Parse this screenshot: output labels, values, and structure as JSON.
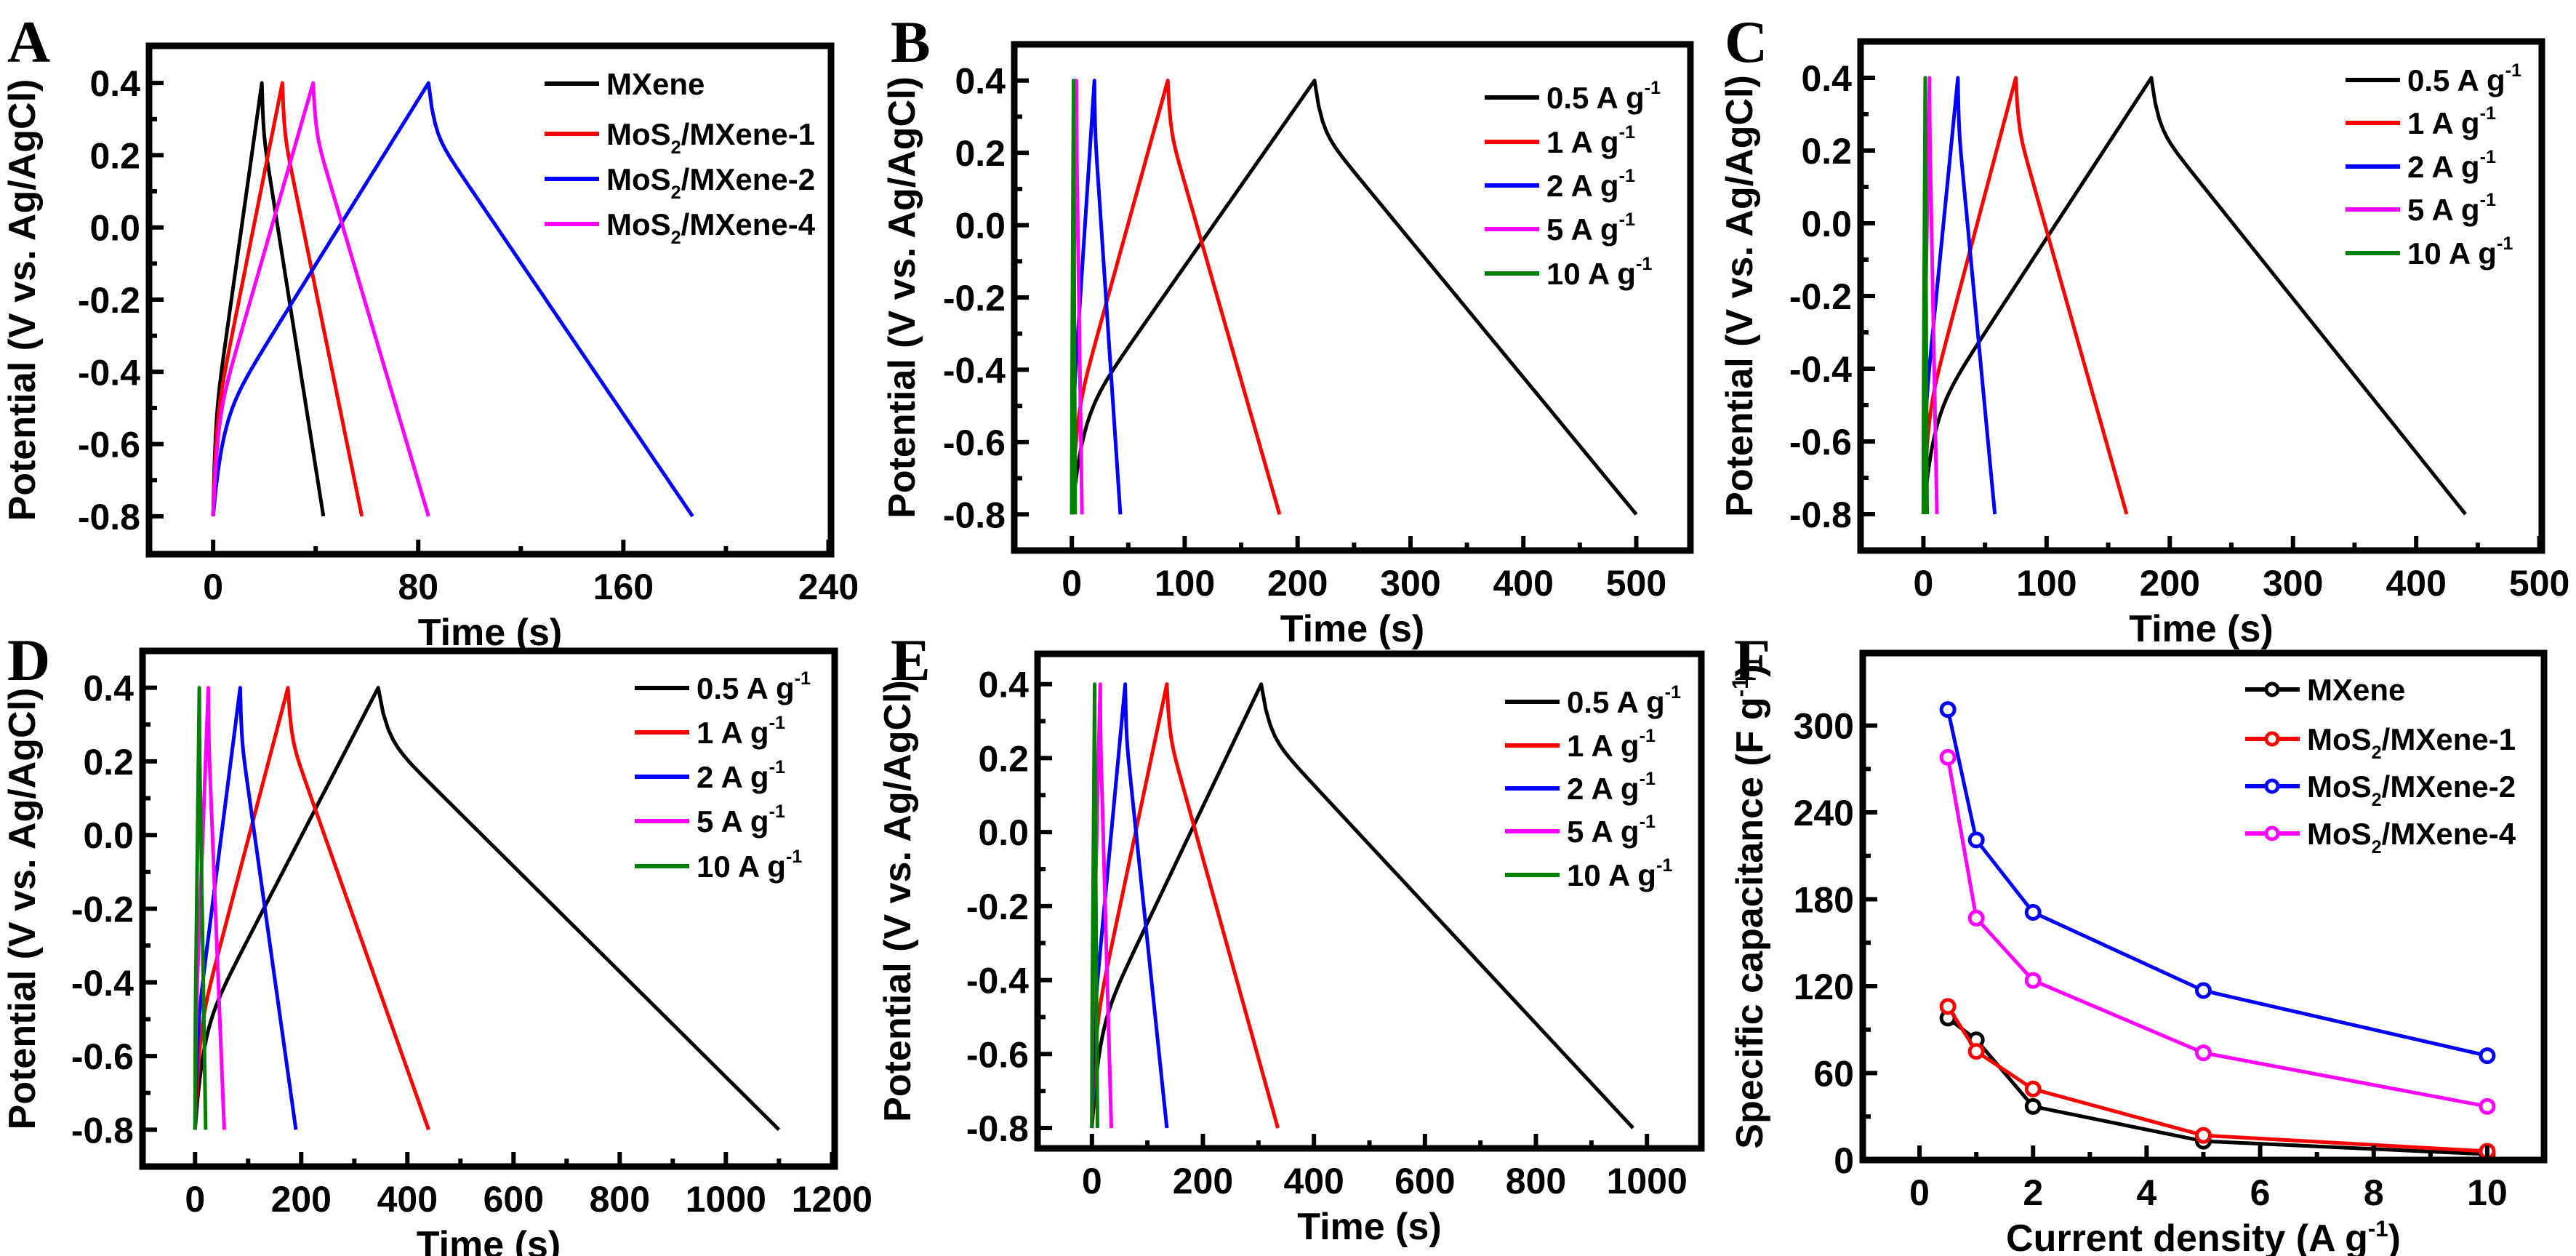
{
  "colors": {
    "black": "#000000",
    "red": "#ff0000",
    "blue": "#0000ff",
    "magenta": "#ff00ff",
    "green": "#008000"
  },
  "chart_data": [
    {
      "panel": "A",
      "type": "line",
      "xlabel": "Time (s)",
      "ylabel": "Potential (V vs. Ag/AgCl)",
      "xlim": [
        -25,
        241
      ],
      "ylim": [
        -0.905,
        0.503
      ],
      "xticks": [
        0,
        80,
        160,
        240
      ],
      "xminor": [
        40,
        120,
        200
      ],
      "yticks": [
        -0.8,
        -0.6,
        -0.4,
        -0.2,
        0.0,
        0.2,
        0.4
      ],
      "voltage_window": [
        -0.8,
        0.4
      ],
      "legend_position": "top-right",
      "series": [
        {
          "name": "MXene",
          "color": "#000000",
          "peak_time": 19,
          "end_time": 43
        },
        {
          "name": "MoS2/MXene-1",
          "color": "#ff0000",
          "peak_time": 27,
          "end_time": 58
        },
        {
          "name": "MoS2/MXene-2",
          "color": "#0000ff",
          "peak_time": 84,
          "end_time": 187
        },
        {
          "name": "MoS2/MXene-4",
          "color": "#ff00ff",
          "peak_time": 39,
          "end_time": 84
        }
      ]
    },
    {
      "panel": "B",
      "type": "line",
      "xlabel": "Time (s)",
      "ylabel": "Potential (V vs. Ag/AgCl)",
      "xlim": [
        -51,
        548
      ],
      "ylim": [
        -0.9,
        0.5
      ],
      "xticks": [
        0,
        100,
        200,
        300,
        400,
        500
      ],
      "xminor": [
        50,
        150,
        250,
        350,
        450
      ],
      "yticks": [
        -0.8,
        -0.6,
        -0.4,
        -0.2,
        0.0,
        0.2,
        0.4
      ],
      "voltage_window": [
        -0.8,
        0.4
      ],
      "legend_position": "top-right",
      "series": [
        {
          "name": "0.5 A g-1",
          "color": "#000000",
          "peak_time": 215,
          "end_time": 500
        },
        {
          "name": "1 A g-1",
          "color": "#ff0000",
          "peak_time": 85,
          "end_time": 184
        },
        {
          "name": "2 A g-1",
          "color": "#0000ff",
          "peak_time": 20,
          "end_time": 43
        },
        {
          "name": "5 A g-1",
          "color": "#ff00ff",
          "peak_time": 4,
          "end_time": 9
        },
        {
          "name": "10 A g-1",
          "color": "#008000",
          "peak_time": 1.5,
          "end_time": 3
        }
      ]
    },
    {
      "panel": "C",
      "type": "line",
      "xlabel": "Time (s)",
      "ylabel": "Potential (V vs. Ag/AgCl)",
      "xlim": [
        -51,
        502
      ],
      "ylim": [
        -0.9,
        0.5
      ],
      "xticks": [
        0,
        100,
        200,
        300,
        400,
        500
      ],
      "xminor": [
        50,
        150,
        250,
        350,
        450
      ],
      "yticks": [
        -0.8,
        -0.6,
        -0.4,
        -0.2,
        0.0,
        0.2,
        0.4
      ],
      "voltage_window": [
        -0.8,
        0.4
      ],
      "legend_position": "top-right",
      "series": [
        {
          "name": "0.5 A g-1",
          "color": "#000000",
          "peak_time": 185,
          "end_time": 440
        },
        {
          "name": "1 A g-1",
          "color": "#ff0000",
          "peak_time": 75,
          "end_time": 165
        },
        {
          "name": "2 A g-1",
          "color": "#0000ff",
          "peak_time": 28,
          "end_time": 58
        },
        {
          "name": "5 A g-1",
          "color": "#ff00ff",
          "peak_time": 5,
          "end_time": 11
        },
        {
          "name": "10 A g-1",
          "color": "#008000",
          "peak_time": 1.5,
          "end_time": 3
        }
      ]
    },
    {
      "panel": "D",
      "type": "line",
      "xlabel": "Time (s)",
      "ylabel": "Potential (V vs. Ag/AgCl)",
      "xlim": [
        -99,
        1205
      ],
      "ylim": [
        -0.9,
        0.5
      ],
      "xticks": [
        0,
        200,
        400,
        600,
        800,
        1000,
        1200
      ],
      "xminor": [
        100,
        300,
        500,
        700,
        900,
        1100
      ],
      "yticks": [
        -0.8,
        -0.6,
        -0.4,
        -0.2,
        0.0,
        0.2,
        0.4
      ],
      "voltage_window": [
        -0.8,
        0.4
      ],
      "legend_position": "top-right",
      "series": [
        {
          "name": "0.5 A g-1",
          "color": "#000000",
          "peak_time": 345,
          "end_time": 1100
        },
        {
          "name": "1 A g-1",
          "color": "#ff0000",
          "peak_time": 175,
          "end_time": 440
        },
        {
          "name": "2 A g-1",
          "color": "#0000ff",
          "peak_time": 85,
          "end_time": 190
        },
        {
          "name": "5 A g-1",
          "color": "#ff00ff",
          "peak_time": 25,
          "end_time": 55
        },
        {
          "name": "10 A g-1",
          "color": "#008000",
          "peak_time": 8,
          "end_time": 20
        }
      ]
    },
    {
      "panel": "E",
      "type": "line",
      "xlabel": "Time (s)",
      "ylabel": "Potential (V vs. Ag/AgCl)",
      "xlim": [
        -98,
        1098
      ],
      "ylim": [
        -0.855,
        0.482
      ],
      "xticks": [
        0,
        200,
        400,
        600,
        800,
        1000
      ],
      "xminor": [
        100,
        300,
        500,
        700,
        900
      ],
      "yticks": [
        -0.8,
        -0.6,
        -0.4,
        -0.2,
        0.0,
        0.2,
        0.4
      ],
      "voltage_window": [
        -0.8,
        0.4
      ],
      "legend_position": "top-right",
      "series": [
        {
          "name": "0.5 A g-1",
          "color": "#000000",
          "peak_time": 305,
          "end_time": 975
        },
        {
          "name": "1 A g-1",
          "color": "#ff0000",
          "peak_time": 135,
          "end_time": 335
        },
        {
          "name": "2 A g-1",
          "color": "#0000ff",
          "peak_time": 60,
          "end_time": 135
        },
        {
          "name": "5 A g-1",
          "color": "#ff00ff",
          "peak_time": 15,
          "end_time": 35
        },
        {
          "name": "10 A g-1",
          "color": "#008000",
          "peak_time": 5,
          "end_time": 10
        }
      ]
    },
    {
      "panel": "F",
      "type": "line",
      "xlabel": "Current density (A g-1)",
      "ylabel": "Specific capacitance (F g-1)",
      "xlim": [
        -1,
        11
      ],
      "ylim": [
        0,
        350
      ],
      "xticks": [
        0,
        2,
        4,
        6,
        8,
        10
      ],
      "xminor": [
        1,
        3,
        5,
        7,
        9
      ],
      "yticks": [
        0,
        60,
        120,
        180,
        240,
        300
      ],
      "legend_position": "top-right",
      "x": [
        0.5,
        1,
        2,
        5,
        10
      ],
      "series": [
        {
          "name": "MXene",
          "color": "#000000",
          "values": [
            98,
            83,
            37,
            13,
            4
          ]
        },
        {
          "name": "MoS2/MXene-1",
          "color": "#ff0000",
          "values": [
            106,
            75,
            49,
            17,
            6
          ]
        },
        {
          "name": "MoS2/MXene-2",
          "color": "#0000ff",
          "values": [
            311,
            221,
            171,
            117,
            72
          ]
        },
        {
          "name": "MoS2/MXene-4",
          "color": "#ff00ff",
          "values": [
            278,
            167,
            124,
            74,
            37
          ]
        }
      ]
    }
  ]
}
